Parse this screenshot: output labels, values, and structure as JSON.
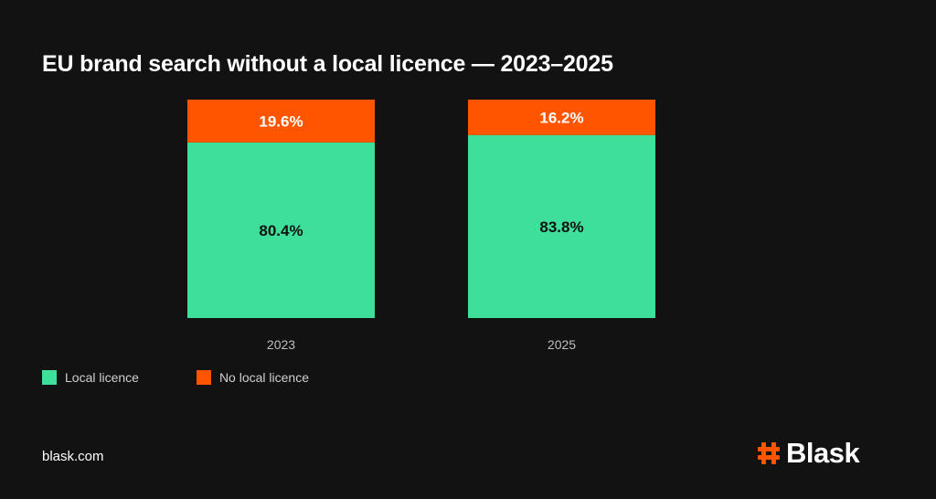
{
  "title": "EU brand search without a local licence — 2023–2025",
  "chart_data": {
    "type": "bar",
    "stacked": true,
    "categories": [
      "2023",
      "2025"
    ],
    "series": [
      {
        "name": "Local licence",
        "values": [
          80.4,
          83.8
        ],
        "color": "#3ede9b"
      },
      {
        "name": "No local licence",
        "values": [
          19.6,
          16.2
        ],
        "color": "#ff5500"
      }
    ],
    "data_labels": [
      [
        "80.4%",
        "83.8%"
      ],
      [
        "19.6%",
        "16.2%"
      ]
    ],
    "ylim": [
      0,
      100
    ],
    "legend_position": "bottom-left",
    "grid": false
  },
  "legend": [
    {
      "label": "Local licence",
      "color": "#3ede9b"
    },
    {
      "label": "No local licence",
      "color": "#ff5500"
    }
  ],
  "footer": {
    "site": "blask.com"
  },
  "brand": {
    "name": "Blask",
    "icon": "hash-icon",
    "color": "#ff5500"
  }
}
